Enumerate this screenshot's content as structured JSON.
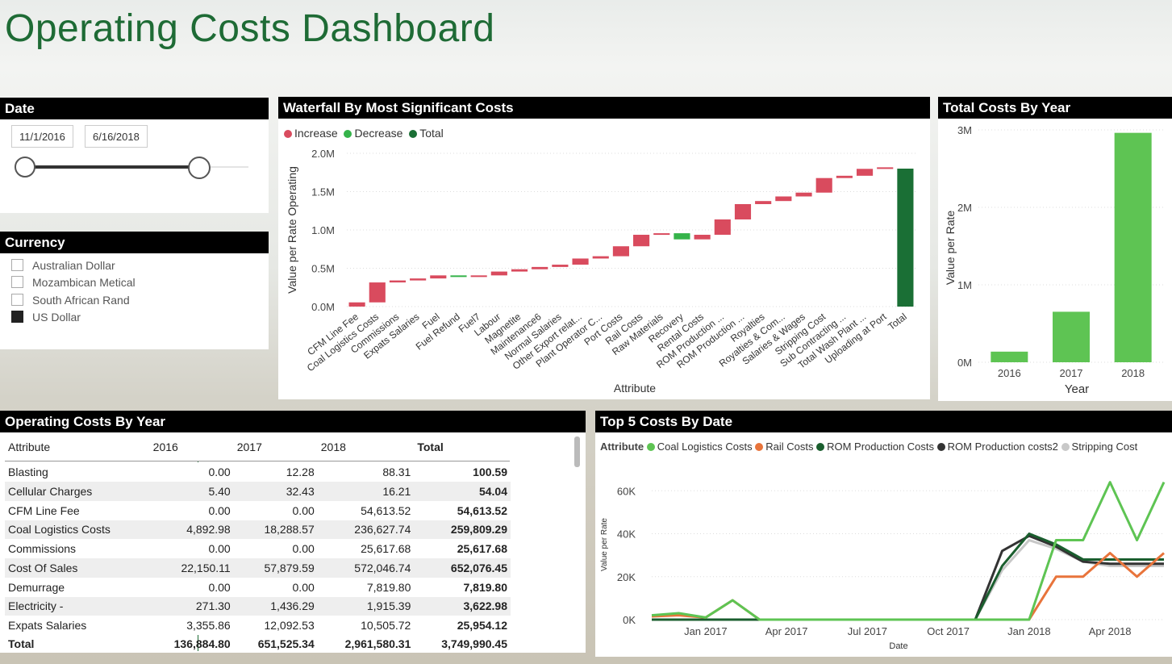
{
  "title": "Operating Costs Dashboard",
  "date_slicer": {
    "title": "Date",
    "start": "11/1/2016",
    "end": "6/16/2018"
  },
  "currency": {
    "title": "Currency",
    "options": [
      {
        "label": "Australian Dollar",
        "checked": false
      },
      {
        "label": "Mozambican Metical",
        "checked": false
      },
      {
        "label": "South African Rand",
        "checked": false
      },
      {
        "label": "US Dollar",
        "checked": true
      }
    ]
  },
  "colors": {
    "accent": "#1e6b35",
    "increase": "#d94b5e",
    "decrease": "#35b34a",
    "total": "#1a6f35",
    "bar": "#5ec453"
  },
  "waterfall": {
    "title": "Waterfall By Most Significant Costs",
    "legend": [
      "Increase",
      "Decrease",
      "Total"
    ],
    "ylabel": "Value per Rate Operating",
    "xlabel": "Attribute"
  },
  "total_by_year": {
    "title": "Total Costs By Year",
    "ylabel": "Value per Rate",
    "xlabel": "Year"
  },
  "table": {
    "title": "Operating Costs By Year",
    "headers": [
      "Attribute",
      "2016",
      "2017",
      "2018",
      "Total"
    ],
    "rows": [
      [
        "Blasting",
        "0.00",
        "12.28",
        "88.31",
        "100.59"
      ],
      [
        "Cellular Charges",
        "5.40",
        "32.43",
        "16.21",
        "54.04"
      ],
      [
        "CFM Line Fee",
        "0.00",
        "0.00",
        "54,613.52",
        "54,613.52"
      ],
      [
        "Coal Logistics Costs",
        "4,892.98",
        "18,288.57",
        "236,627.74",
        "259,809.29"
      ],
      [
        "Commissions",
        "0.00",
        "0.00",
        "25,617.68",
        "25,617.68"
      ],
      [
        "Cost Of Sales",
        "22,150.11",
        "57,879.59",
        "572,046.74",
        "652,076.45"
      ],
      [
        "Demurrage",
        "0.00",
        "0.00",
        "7,819.80",
        "7,819.80"
      ],
      [
        "Electricity -",
        "271.30",
        "1,436.29",
        "1,915.39",
        "3,622.98"
      ],
      [
        "Expats Salaries",
        "3,355.86",
        "12,092.53",
        "10,505.72",
        "25,954.12"
      ]
    ],
    "total": [
      "Total",
      "136,884.80",
      "651,525.34",
      "2,961,580.31",
      "3,749,990.45"
    ]
  },
  "top5": {
    "title": "Top 5 Costs By Date",
    "legend_label": "Attribute",
    "ylabel": "Value per Rate",
    "xlabel": "Date"
  },
  "chart_data": [
    {
      "type": "bar",
      "subtype": "waterfall",
      "categories": [
        "CFM Line Fee",
        "Coal Logistics Costs",
        "Commissions",
        "Expats Salaries",
        "Fuel",
        "Fuel Refund",
        "Fuel7",
        "Labour",
        "Magnetite",
        "Maintenance6",
        "Normal Salaries",
        "Other Export relat...",
        "Plant Operator C...",
        "Port Costs",
        "Rail Costs",
        "Raw Materials",
        "Recovery",
        "Rental Costs",
        "ROM Production ...",
        "ROM Production ...",
        "Royalties",
        "Royalties & Com...",
        "Salaries & Wages",
        "Stripping Cost",
        "Sub Contracting ...",
        "Total Wash Plant ...",
        "Uploading at Port",
        "Total"
      ],
      "values": [
        0.055,
        0.26,
        0.026,
        0.026,
        0.04,
        -0.02,
        0.02,
        0.05,
        0.03,
        0.03,
        0.03,
        0.08,
        0.03,
        0.13,
        0.15,
        0.02,
        -0.08,
        0.06,
        0.2,
        0.2,
        0.04,
        0.06,
        0.05,
        0.19,
        0.03,
        0.09,
        0.02,
        1.8
      ],
      "ylim": [
        0,
        2.0
      ],
      "yticks": [
        "0.0M",
        "0.5M",
        "1.0M",
        "1.5M",
        "2.0M"
      ],
      "units": "M"
    },
    {
      "type": "bar",
      "categories": [
        "2016",
        "2017",
        "2018"
      ],
      "values": [
        0.137,
        0.652,
        2.962
      ],
      "units": "M",
      "ylim": [
        0,
        3.2
      ],
      "yticks": [
        "0M",
        "1M",
        "2M",
        "3M"
      ]
    },
    {
      "type": "line",
      "x": [
        "Nov 2016",
        "Dec 2016",
        "Jan 2017",
        "Feb 2017",
        "Mar 2017",
        "Apr 2017",
        "May 2017",
        "Jun 2017",
        "Jul 2017",
        "Aug 2017",
        "Sep 2017",
        "Oct 2017",
        "Nov 2017",
        "Dec 2017",
        "Jan 2018",
        "Feb 2018",
        "Mar 2018",
        "Apr 2018",
        "May 2018",
        "Jun 2018"
      ],
      "xticks": [
        "Jan 2017",
        "Apr 2017",
        "Jul 2017",
        "Oct 2017",
        "Jan 2018",
        "Apr 2018"
      ],
      "yticks": [
        "0K",
        "20K",
        "40K",
        "60K"
      ],
      "ylim": [
        0,
        70
      ],
      "units": "K",
      "series": [
        {
          "name": "Coal Logistics Costs",
          "color": "#5ec453",
          "values": [
            2,
            3,
            1,
            9,
            0,
            0,
            0,
            0,
            0,
            0,
            0,
            0,
            0,
            0,
            0,
            37,
            37,
            64,
            37,
            64
          ]
        },
        {
          "name": "Rail Costs",
          "color": "#e8743b",
          "values": [
            1.5,
            2,
            1,
            9,
            0,
            0,
            0,
            0,
            0,
            0,
            0,
            0,
            0,
            0,
            0,
            20,
            20,
            31,
            20,
            31
          ]
        },
        {
          "name": "ROM Production Costs",
          "color": "#1a5e2e",
          "values": [
            0,
            0,
            0,
            0,
            0,
            0,
            0,
            0,
            0,
            0,
            0,
            0,
            0,
            25,
            40,
            35,
            28,
            28,
            28,
            28
          ]
        },
        {
          "name": "ROM Production costs2",
          "color": "#333333",
          "values": [
            0,
            0,
            0,
            0,
            0,
            0,
            0,
            0,
            0,
            0,
            0,
            0,
            0,
            32,
            39,
            34,
            27,
            26,
            26,
            26
          ]
        },
        {
          "name": "Stripping Cost",
          "color": "#c8c8c8",
          "values": [
            0,
            0,
            0,
            0,
            0,
            0,
            0,
            0,
            0,
            0,
            0,
            0,
            0,
            23,
            37,
            33,
            27,
            25,
            25,
            25
          ]
        }
      ]
    }
  ]
}
